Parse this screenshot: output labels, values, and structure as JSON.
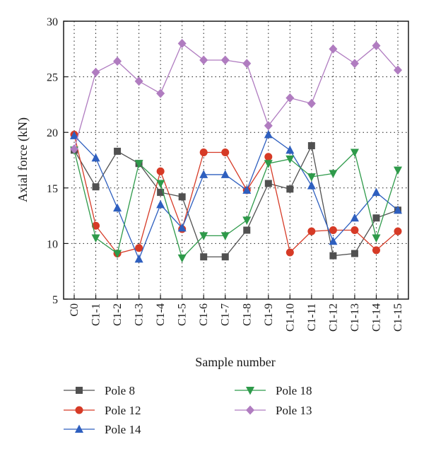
{
  "chart_data": {
    "type": "line",
    "xlabel": "Sample number",
    "ylabel": "Axial force (kN)",
    "ylim": [
      5,
      30
    ],
    "yticks": [
      5,
      10,
      15,
      20,
      25,
      30
    ],
    "grid": true,
    "legend_position": "bottom",
    "categories": [
      "C0",
      "C1-1",
      "C1-2",
      "C1-3",
      "C1-4",
      "C1-5",
      "C1-6",
      "C1-7",
      "C1-8",
      "C1-9",
      "C1-10",
      "C1-11",
      "C1-12",
      "C1-13",
      "C1-14",
      "C1-15"
    ],
    "series": [
      {
        "name": "Pole 8",
        "color": "#505050",
        "marker": "square",
        "values": [
          18.4,
          15.1,
          18.3,
          17.2,
          14.6,
          14.2,
          8.8,
          8.8,
          11.2,
          15.4,
          14.9,
          18.8,
          8.9,
          9.1,
          12.3,
          13.0
        ]
      },
      {
        "name": "Pole 12",
        "color": "#d63a26",
        "marker": "circle",
        "values": [
          19.8,
          11.6,
          9.1,
          9.6,
          16.5,
          11.3,
          18.2,
          18.2,
          14.8,
          17.8,
          9.2,
          11.1,
          11.2,
          11.2,
          9.4,
          11.1
        ]
      },
      {
        "name": "Pole 14",
        "color": "#2e5fbf",
        "marker": "triangle-up",
        "values": [
          19.7,
          17.7,
          13.2,
          8.6,
          13.5,
          11.4,
          16.2,
          16.2,
          14.8,
          19.8,
          18.4,
          15.2,
          10.2,
          12.3,
          14.6,
          13.0
        ]
      },
      {
        "name": "Pole 18",
        "color": "#2e9a4a",
        "marker": "triangle-down",
        "values": [
          18.4,
          10.5,
          9.1,
          17.2,
          15.4,
          8.7,
          10.7,
          10.7,
          12.1,
          17.2,
          17.6,
          16.0,
          16.3,
          18.2,
          10.5,
          16.6
        ]
      },
      {
        "name": "Pole 13",
        "color": "#b07cc0",
        "marker": "diamond",
        "values": [
          18.5,
          25.4,
          26.4,
          24.6,
          23.5,
          28.0,
          26.5,
          26.5,
          26.2,
          20.6,
          23.1,
          22.6,
          27.5,
          26.2,
          27.8,
          25.6
        ]
      }
    ]
  }
}
